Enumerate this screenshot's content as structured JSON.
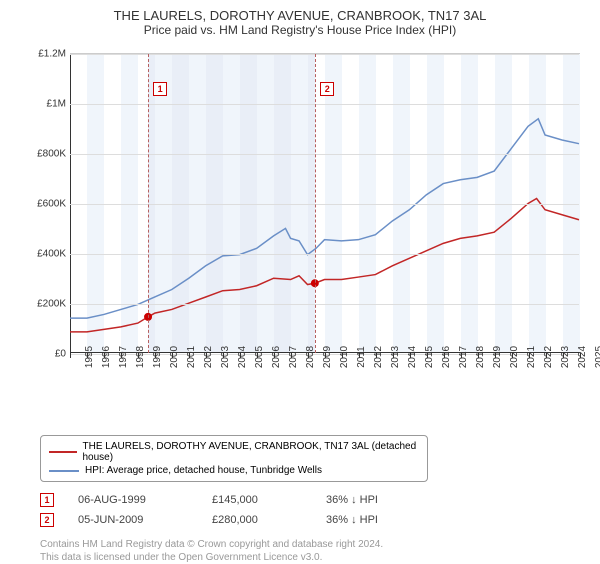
{
  "title": "THE LAURELS, DOROTHY AVENUE, CRANBROOK, TN17 3AL",
  "subtitle": "Price paid vs. HM Land Registry's House Price Index (HPI)",
  "chart": {
    "type": "line",
    "background_color": "#ffffff",
    "grid_color": "#dddddd",
    "axis_color": "#333333",
    "xlim": [
      1995,
      2025
    ],
    "ylim": [
      0,
      1200000
    ],
    "ytick_step": 200000,
    "yticks": [
      "£0",
      "£200K",
      "£400K",
      "£600K",
      "£800K",
      "£1M",
      "£1.2M"
    ],
    "xticks": [
      1995,
      1996,
      1997,
      1998,
      1999,
      2000,
      2001,
      2002,
      2003,
      2004,
      2005,
      2006,
      2007,
      2008,
      2009,
      2010,
      2011,
      2012,
      2013,
      2014,
      2015,
      2016,
      2017,
      2018,
      2019,
      2020,
      2021,
      2022,
      2023,
      2024,
      2025
    ],
    "shaded_range": [
      1999.6,
      2009.43
    ],
    "vlines": [
      1999.6,
      2009.43
    ],
    "vline_color": "#b76060",
    "band_color": "#f0f5fb",
    "shaded_color": "#e9eef7",
    "series": [
      {
        "id": "price_paid",
        "color": "#c22626",
        "width": 1.5,
        "data": [
          [
            1995,
            85000
          ],
          [
            1996,
            85000
          ],
          [
            1997,
            95000
          ],
          [
            1998,
            105000
          ],
          [
            1999,
            120000
          ],
          [
            1999.6,
            145000
          ],
          [
            2000,
            160000
          ],
          [
            2001,
            175000
          ],
          [
            2002,
            200000
          ],
          [
            2003,
            225000
          ],
          [
            2004,
            250000
          ],
          [
            2005,
            255000
          ],
          [
            2006,
            270000
          ],
          [
            2007,
            300000
          ],
          [
            2008,
            295000
          ],
          [
            2008.5,
            310000
          ],
          [
            2009,
            275000
          ],
          [
            2009.43,
            280000
          ],
          [
            2010,
            295000
          ],
          [
            2011,
            295000
          ],
          [
            2012,
            305000
          ],
          [
            2013,
            315000
          ],
          [
            2014,
            350000
          ],
          [
            2015,
            380000
          ],
          [
            2016,
            410000
          ],
          [
            2017,
            440000
          ],
          [
            2018,
            460000
          ],
          [
            2019,
            470000
          ],
          [
            2020,
            485000
          ],
          [
            2021,
            540000
          ],
          [
            2022,
            600000
          ],
          [
            2022.5,
            620000
          ],
          [
            2023,
            575000
          ],
          [
            2024,
            555000
          ],
          [
            2025,
            535000
          ]
        ]
      },
      {
        "id": "hpi",
        "color": "#6a8fc7",
        "width": 1.5,
        "data": [
          [
            1995,
            140000
          ],
          [
            1996,
            140000
          ],
          [
            1997,
            155000
          ],
          [
            1998,
            175000
          ],
          [
            1999,
            195000
          ],
          [
            2000,
            225000
          ],
          [
            2001,
            255000
          ],
          [
            2002,
            300000
          ],
          [
            2003,
            350000
          ],
          [
            2004,
            390000
          ],
          [
            2005,
            395000
          ],
          [
            2006,
            420000
          ],
          [
            2007,
            470000
          ],
          [
            2007.7,
            500000
          ],
          [
            2008,
            460000
          ],
          [
            2008.5,
            450000
          ],
          [
            2009,
            395000
          ],
          [
            2009.5,
            420000
          ],
          [
            2010,
            455000
          ],
          [
            2011,
            450000
          ],
          [
            2012,
            455000
          ],
          [
            2013,
            475000
          ],
          [
            2014,
            530000
          ],
          [
            2015,
            575000
          ],
          [
            2016,
            635000
          ],
          [
            2017,
            680000
          ],
          [
            2018,
            695000
          ],
          [
            2019,
            705000
          ],
          [
            2020,
            730000
          ],
          [
            2021,
            820000
          ],
          [
            2022,
            910000
          ],
          [
            2022.6,
            940000
          ],
          [
            2023,
            875000
          ],
          [
            2024,
            855000
          ],
          [
            2025,
            840000
          ]
        ]
      }
    ],
    "sale_markers": [
      {
        "label": "1",
        "x": 1999.6,
        "y": 145000
      },
      {
        "label": "2",
        "x": 2009.43,
        "y": 280000
      }
    ]
  },
  "legend": {
    "items": [
      {
        "color": "#c22626",
        "label": "THE LAURELS, DOROTHY AVENUE, CRANBROOK, TN17 3AL (detached house)"
      },
      {
        "color": "#6a8fc7",
        "label": "HPI: Average price, detached house, Tunbridge Wells"
      }
    ]
  },
  "sales": [
    {
      "label": "1",
      "date": "06-AUG-1999",
      "price": "£145,000",
      "delta": "36% ↓ HPI"
    },
    {
      "label": "2",
      "date": "05-JUN-2009",
      "price": "£280,000",
      "delta": "36% ↓ HPI"
    }
  ],
  "footer": {
    "line1": "Contains HM Land Registry data © Crown copyright and database right 2024.",
    "line2": "This data is licensed under the Open Government Licence v3.0."
  }
}
